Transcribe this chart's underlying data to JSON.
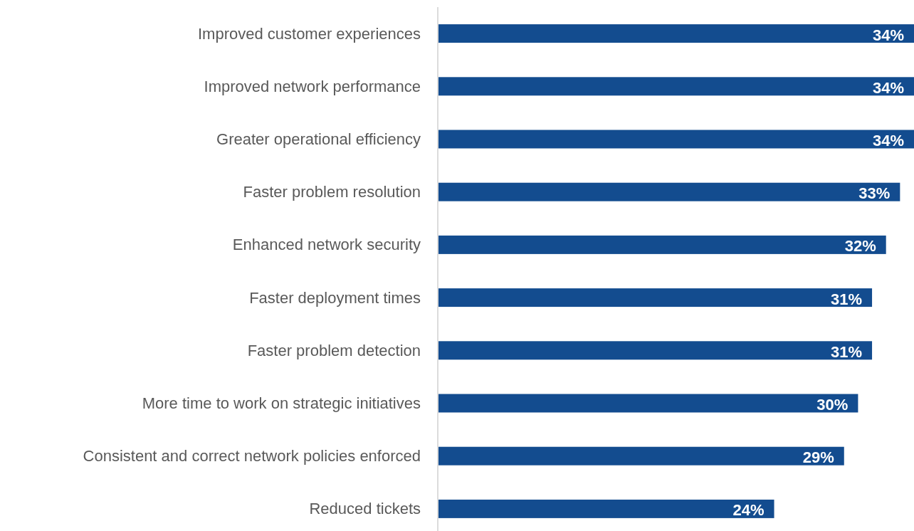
{
  "chart_data": {
    "type": "bar",
    "orientation": "horizontal",
    "categories": [
      "Improved customer experiences",
      "Improved network performance",
      "Greater operational efficiency",
      "Faster problem resolution",
      "Enhanced network security",
      "Faster deployment times",
      "Faster problem detection",
      "More time to work on strategic initiatives",
      "Consistent and correct network policies enforced",
      "Reduced tickets"
    ],
    "values": [
      34,
      34,
      34,
      33,
      32,
      31,
      31,
      30,
      29,
      24
    ],
    "value_labels": [
      "34%",
      "34%",
      "34%",
      "33%",
      "32%",
      "31%",
      "31%",
      "30%",
      "29%",
      "24%"
    ],
    "color": "#134c8f"
  }
}
